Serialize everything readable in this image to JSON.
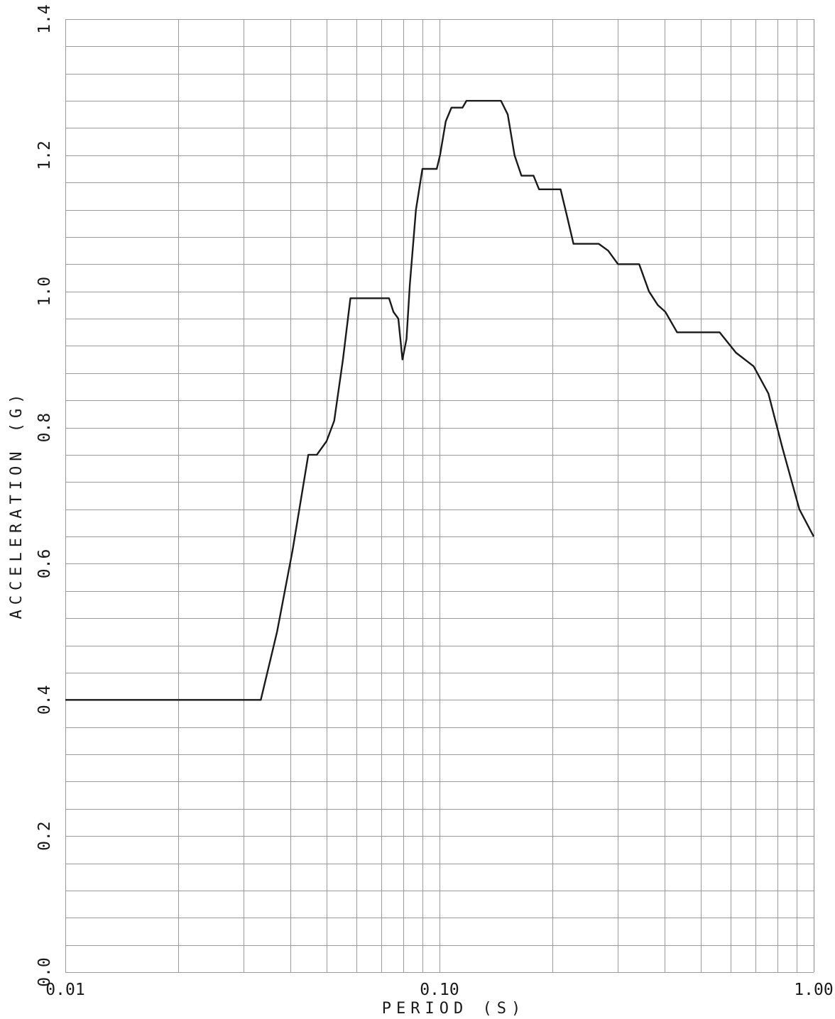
{
  "chart_data": {
    "type": "line",
    "title": "",
    "xlabel": "PERIOD (S)",
    "ylabel": "ACCELERATION (G)",
    "xscale": "log",
    "xlim": [
      0.01,
      1.0
    ],
    "ylim": [
      0.0,
      1.4
    ],
    "grid": true,
    "x_tick_labels": [
      {
        "value": 0.01,
        "label": "0.01"
      },
      {
        "value": 0.1,
        "label": "0.10"
      },
      {
        "value": 1.0,
        "label": "1.00"
      }
    ],
    "y_tick_labels": [
      {
        "value": 0.0,
        "label": "0.0"
      },
      {
        "value": 0.2,
        "label": "0.2"
      },
      {
        "value": 0.4,
        "label": "0.4"
      },
      {
        "value": 0.6,
        "label": "0.6"
      },
      {
        "value": 0.8,
        "label": "0.8"
      },
      {
        "value": 1.0,
        "label": "1.0"
      },
      {
        "value": 1.2,
        "label": "1.2"
      },
      {
        "value": 1.4,
        "label": "1.4"
      }
    ],
    "y_minor_step": 0.04,
    "line_color": "#1a1a1a",
    "grid_color": "#9a9a9a",
    "series": [
      {
        "x": [
          0.01,
          0.0333,
          0.0368,
          0.0405,
          0.0446,
          0.047,
          0.0499,
          0.0523,
          0.0552,
          0.0578,
          0.0618,
          0.0641,
          0.0733,
          0.0753,
          0.0776,
          0.0796,
          0.0816,
          0.0833,
          0.0865,
          0.09,
          0.0924,
          0.0983,
          0.1003,
          0.1039,
          0.1076,
          0.1152,
          0.118,
          0.146,
          0.1522,
          0.1587,
          0.1656,
          0.1783,
          0.1845,
          0.1914,
          0.2106,
          0.2193,
          0.2281,
          0.2377,
          0.2665,
          0.2823,
          0.3,
          0.3417,
          0.3629,
          0.3831,
          0.4015,
          0.4315,
          0.5604,
          0.6197,
          0.6909,
          0.7567,
          0.8252,
          0.9154,
          1.0
        ],
        "y": [
          0.4,
          0.4,
          0.5,
          0.62,
          0.76,
          0.76,
          0.78,
          0.81,
          0.9,
          0.99,
          0.99,
          0.99,
          0.99,
          0.97,
          0.96,
          0.9,
          0.93,
          1.01,
          1.12,
          1.18,
          1.18,
          1.18,
          1.2,
          1.25,
          1.27,
          1.27,
          1.28,
          1.28,
          1.26,
          1.2,
          1.17,
          1.17,
          1.15,
          1.15,
          1.15,
          1.11,
          1.07,
          1.07,
          1.07,
          1.06,
          1.04,
          1.04,
          1.0,
          0.98,
          0.97,
          0.94,
          0.94,
          0.91,
          0.89,
          0.85,
          0.77,
          0.68,
          0.64
        ]
      }
    ]
  }
}
